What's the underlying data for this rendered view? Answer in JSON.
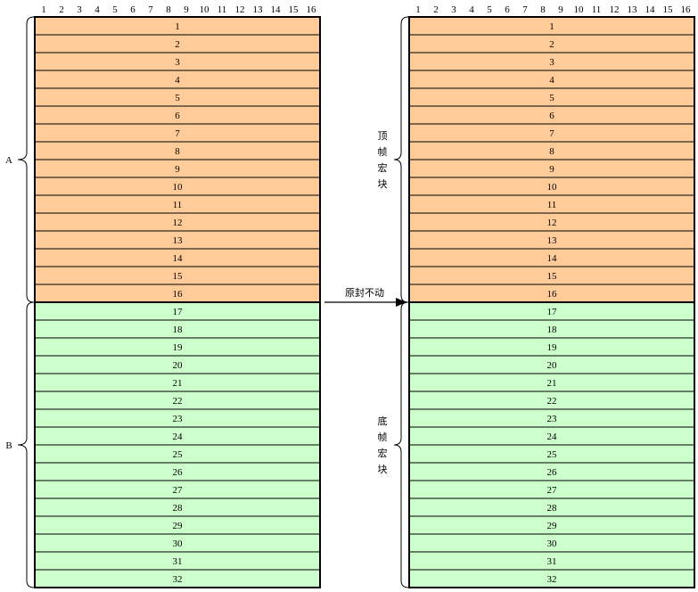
{
  "colors": {
    "top_fill": "#FFCC99",
    "bottom_fill": "#CCFFCC",
    "stroke": "#000000"
  },
  "column_numbers": [
    "1",
    "2",
    "3",
    "4",
    "5",
    "6",
    "7",
    "8",
    "9",
    "10",
    "11",
    "12",
    "13",
    "14",
    "15",
    "16"
  ],
  "rows": {
    "top": [
      "1",
      "2",
      "3",
      "4",
      "5",
      "6",
      "7",
      "8",
      "9",
      "10",
      "11",
      "12",
      "13",
      "14",
      "15",
      "16"
    ],
    "bottom": [
      "17",
      "18",
      "19",
      "20",
      "21",
      "22",
      "23",
      "24",
      "25",
      "26",
      "27",
      "28",
      "29",
      "30",
      "31",
      "32"
    ]
  },
  "left_labels": {
    "top": "A",
    "bottom": "B"
  },
  "right_labels": {
    "top": [
      "顶",
      "帧",
      "宏",
      "块"
    ],
    "bottom": [
      "底",
      "帧",
      "宏",
      "块"
    ]
  },
  "arrow_label": "原封不动"
}
